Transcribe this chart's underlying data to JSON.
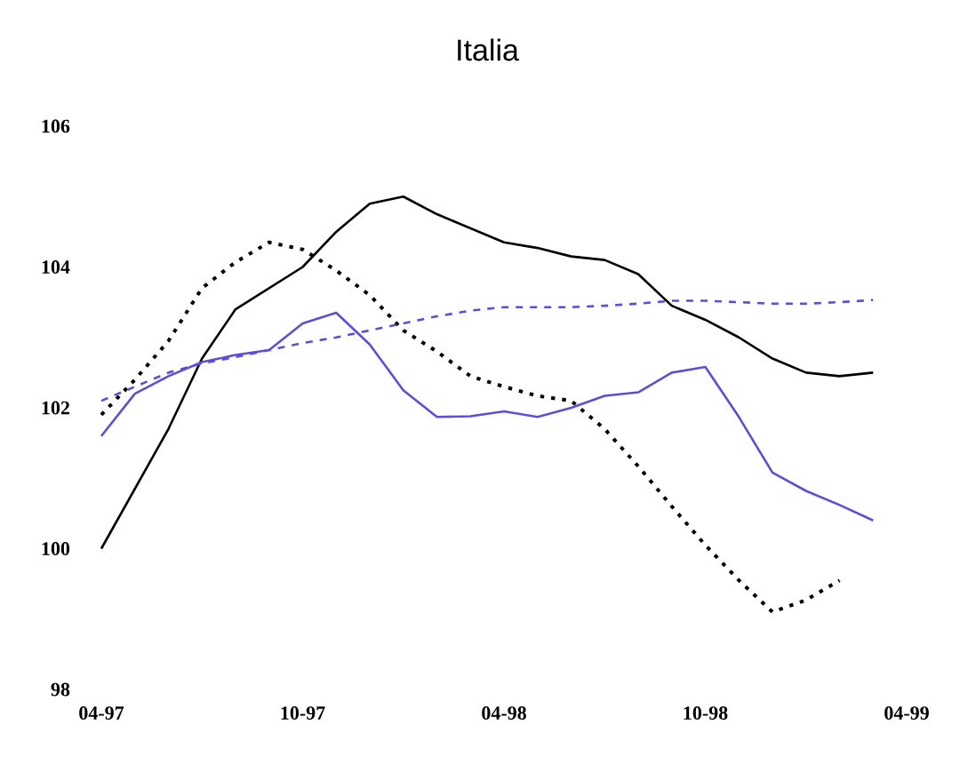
{
  "chart_data": {
    "type": "line",
    "title": "Italia",
    "x": [
      "1997-04",
      "1997-05",
      "1997-06",
      "1997-07",
      "1997-08",
      "1997-09",
      "1997-10",
      "1997-11",
      "1997-12",
      "1998-01",
      "1998-02",
      "1998-03",
      "1998-04",
      "1998-05",
      "1998-06",
      "1998-07",
      "1998-08",
      "1998-09",
      "1998-10",
      "1998-11",
      "1998-12",
      "1999-01",
      "1999-02",
      "1999-03"
    ],
    "series": [
      {
        "color": "#000000",
        "line_style": "solid",
        "values": [
          100.0,
          100.85,
          101.7,
          102.7,
          103.4,
          103.7,
          104.0,
          104.5,
          104.9,
          105.0,
          104.75,
          104.55,
          104.35,
          104.27,
          104.15,
          104.1,
          103.9,
          103.45,
          103.25,
          103.0,
          102.7,
          102.5,
          102.45,
          102.5
        ]
      },
      {
        "color": "#000000",
        "line_style": "dotted",
        "values": [
          101.9,
          102.4,
          102.95,
          103.7,
          104.07,
          104.35,
          104.25,
          103.95,
          103.6,
          103.1,
          102.8,
          102.45,
          102.3,
          102.17,
          102.1,
          101.7,
          101.17,
          100.6,
          100.05,
          99.55,
          99.1,
          99.27,
          99.55,
          null
        ]
      },
      {
        "color": "#5b4fd6",
        "line_style": "solid",
        "values": [
          101.6,
          102.2,
          102.45,
          102.65,
          102.75,
          102.82,
          103.2,
          103.35,
          102.9,
          102.25,
          101.87,
          101.88,
          101.95,
          101.87,
          102.0,
          102.17,
          102.22,
          102.5,
          102.58,
          101.87,
          101.08,
          100.82,
          100.62,
          100.4
        ]
      },
      {
        "color": "#5b4fd6",
        "line_style": "dashed",
        "values": [
          102.1,
          102.3,
          102.5,
          102.63,
          102.72,
          102.82,
          102.92,
          103.0,
          103.1,
          103.2,
          103.3,
          103.38,
          103.43,
          103.43,
          103.43,
          103.45,
          103.48,
          103.52,
          103.52,
          103.5,
          103.48,
          103.48,
          103.5,
          103.53
        ]
      }
    ],
    "xlim": [
      "1997-04",
      "1999-04"
    ],
    "xticks": [
      {
        "value": "1997-04",
        "label": "04-97"
      },
      {
        "value": "1997-10",
        "label": "10-97"
      },
      {
        "value": "1998-04",
        "label": "04-98"
      },
      {
        "value": "1998-10",
        "label": "10-98"
      },
      {
        "value": "1999-04",
        "label": "04-99"
      }
    ],
    "ylim": [
      98,
      106
    ],
    "yticks": [
      98,
      100,
      102,
      104,
      106
    ],
    "grid": false,
    "marker": "none"
  }
}
